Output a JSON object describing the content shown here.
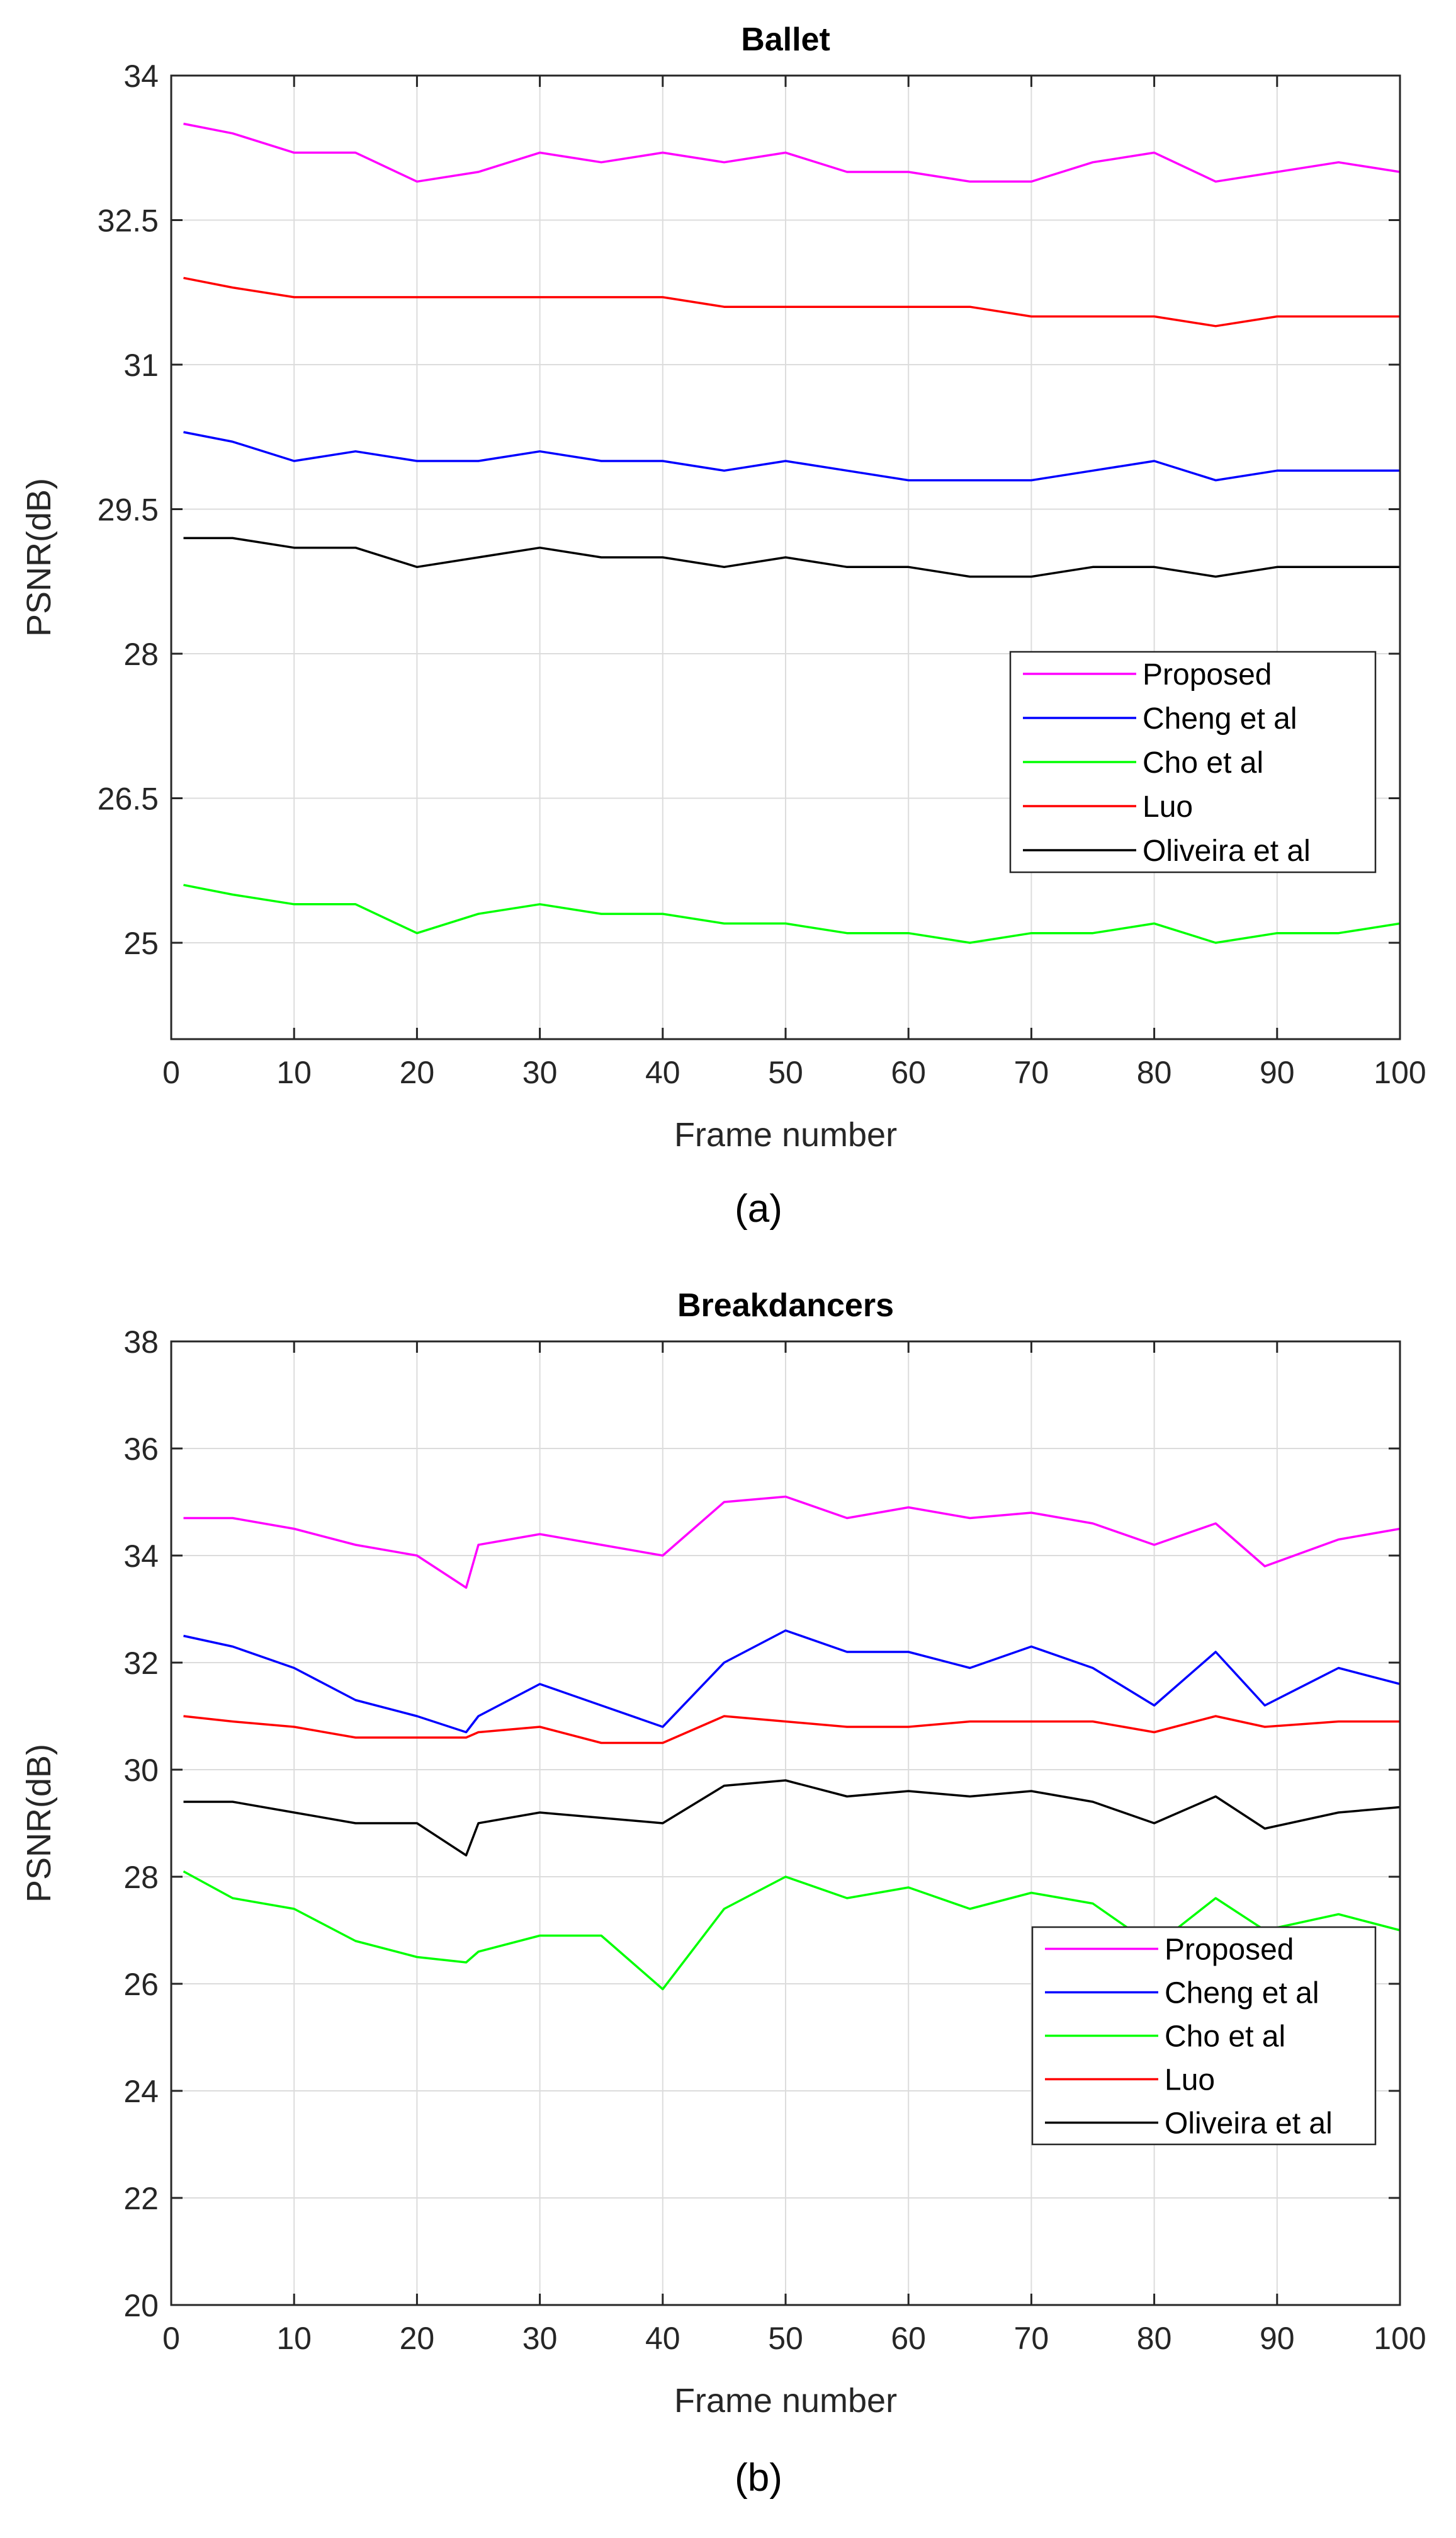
{
  "chart_data": [
    {
      "type": "line",
      "title": "Ballet",
      "xlabel": "Frame number",
      "ylabel": "PSNR(dB)",
      "caption": "(a)",
      "xlim": [
        0,
        100
      ],
      "ylim": [
        24,
        34
      ],
      "xticks": [
        0,
        10,
        20,
        30,
        40,
        50,
        60,
        70,
        80,
        90,
        100
      ],
      "yticks": [
        25,
        26.5,
        28,
        29.5,
        31,
        32.5,
        34
      ],
      "yticklabels": [
        "25",
        "26.5",
        "28",
        "29.5",
        "31",
        "32.5",
        "34"
      ],
      "grid": true,
      "legend_position": "right-center",
      "x": [
        1,
        5,
        10,
        15,
        20,
        25,
        30,
        35,
        40,
        45,
        50,
        55,
        60,
        65,
        70,
        75,
        80,
        85,
        90,
        95,
        100
      ],
      "series": [
        {
          "name": "Proposed",
          "color": "#ff00ff",
          "values": [
            33.5,
            33.4,
            33.2,
            33.2,
            32.9,
            33.0,
            33.2,
            33.1,
            33.2,
            33.1,
            33.2,
            33.0,
            33.0,
            32.9,
            32.9,
            33.1,
            33.2,
            32.9,
            33.0,
            33.1,
            33.0
          ]
        },
        {
          "name": "Cheng et al",
          "color": "#0000ff",
          "values": [
            30.3,
            30.2,
            30.0,
            30.1,
            30.0,
            30.0,
            30.1,
            30.0,
            30.0,
            29.9,
            30.0,
            29.9,
            29.8,
            29.8,
            29.8,
            29.9,
            30.0,
            29.8,
            29.9,
            29.9,
            29.9
          ]
        },
        {
          "name": "Cho et al",
          "color": "#00ff00",
          "values": [
            25.6,
            25.5,
            25.4,
            25.4,
            25.1,
            25.3,
            25.4,
            25.3,
            25.3,
            25.2,
            25.2,
            25.1,
            25.1,
            25.0,
            25.1,
            25.1,
            25.2,
            25.0,
            25.1,
            25.1,
            25.2
          ]
        },
        {
          "name": "Luo",
          "color": "#ff0000",
          "values": [
            31.9,
            31.8,
            31.7,
            31.7,
            31.7,
            31.7,
            31.7,
            31.7,
            31.7,
            31.6,
            31.6,
            31.6,
            31.6,
            31.6,
            31.5,
            31.5,
            31.5,
            31.4,
            31.5,
            31.5,
            31.5
          ]
        },
        {
          "name": "Oliveira et al",
          "color": "#000000",
          "values": [
            29.2,
            29.2,
            29.1,
            29.1,
            28.9,
            29.0,
            29.1,
            29.0,
            29.0,
            28.9,
            29.0,
            28.9,
            28.9,
            28.8,
            28.8,
            28.9,
            28.9,
            28.8,
            28.9,
            28.9,
            28.9
          ]
        }
      ]
    },
    {
      "type": "line",
      "title": "Breakdancers",
      "xlabel": "Frame number",
      "ylabel": "PSNR(dB)",
      "caption": "(b)",
      "xlim": [
        0,
        100
      ],
      "ylim": [
        20,
        38
      ],
      "xticks": [
        0,
        10,
        20,
        30,
        40,
        50,
        60,
        70,
        80,
        90,
        100
      ],
      "yticks": [
        20,
        22,
        24,
        26,
        28,
        30,
        32,
        34,
        36,
        38
      ],
      "yticklabels": [
        "20",
        "22",
        "24",
        "26",
        "28",
        "30",
        "32",
        "34",
        "36",
        "38"
      ],
      "grid": true,
      "legend_position": "bottom-right",
      "x": [
        1,
        5,
        10,
        15,
        20,
        24,
        25,
        30,
        35,
        40,
        45,
        50,
        55,
        60,
        65,
        70,
        75,
        80,
        85,
        89,
        95,
        100
      ],
      "series": [
        {
          "name": "Proposed",
          "color": "#ff00ff",
          "values": [
            34.7,
            34.7,
            34.5,
            34.2,
            34.0,
            33.4,
            34.2,
            34.4,
            34.2,
            34.0,
            35.0,
            35.1,
            34.7,
            34.9,
            34.7,
            34.8,
            34.6,
            34.2,
            34.6,
            33.8,
            34.3,
            34.5
          ]
        },
        {
          "name": "Cheng et al",
          "color": "#0000ff",
          "values": [
            32.5,
            32.3,
            31.9,
            31.3,
            31.0,
            30.7,
            31.0,
            31.6,
            31.2,
            30.8,
            32.0,
            32.6,
            32.2,
            32.2,
            31.9,
            32.3,
            31.9,
            31.2,
            32.2,
            31.2,
            31.9,
            31.6
          ]
        },
        {
          "name": "Cho et al",
          "color": "#00ff00",
          "values": [
            28.1,
            27.6,
            27.4,
            26.8,
            26.5,
            26.4,
            26.6,
            26.9,
            26.9,
            25.9,
            27.4,
            28.0,
            27.6,
            27.8,
            27.4,
            27.7,
            27.5,
            26.7,
            27.6,
            27.0,
            27.3,
            27.0
          ]
        },
        {
          "name": "Luo",
          "color": "#ff0000",
          "values": [
            31.0,
            30.9,
            30.8,
            30.6,
            30.6,
            30.6,
            30.7,
            30.8,
            30.5,
            30.5,
            31.0,
            30.9,
            30.8,
            30.8,
            30.9,
            30.9,
            30.9,
            30.7,
            31.0,
            30.8,
            30.9,
            30.9
          ]
        },
        {
          "name": "Oliveira et al",
          "color": "#000000",
          "values": [
            29.4,
            29.4,
            29.2,
            29.0,
            29.0,
            28.4,
            29.0,
            29.2,
            29.1,
            29.0,
            29.7,
            29.8,
            29.5,
            29.6,
            29.5,
            29.6,
            29.4,
            29.0,
            29.5,
            28.9,
            29.2,
            29.3
          ]
        }
      ]
    }
  ]
}
